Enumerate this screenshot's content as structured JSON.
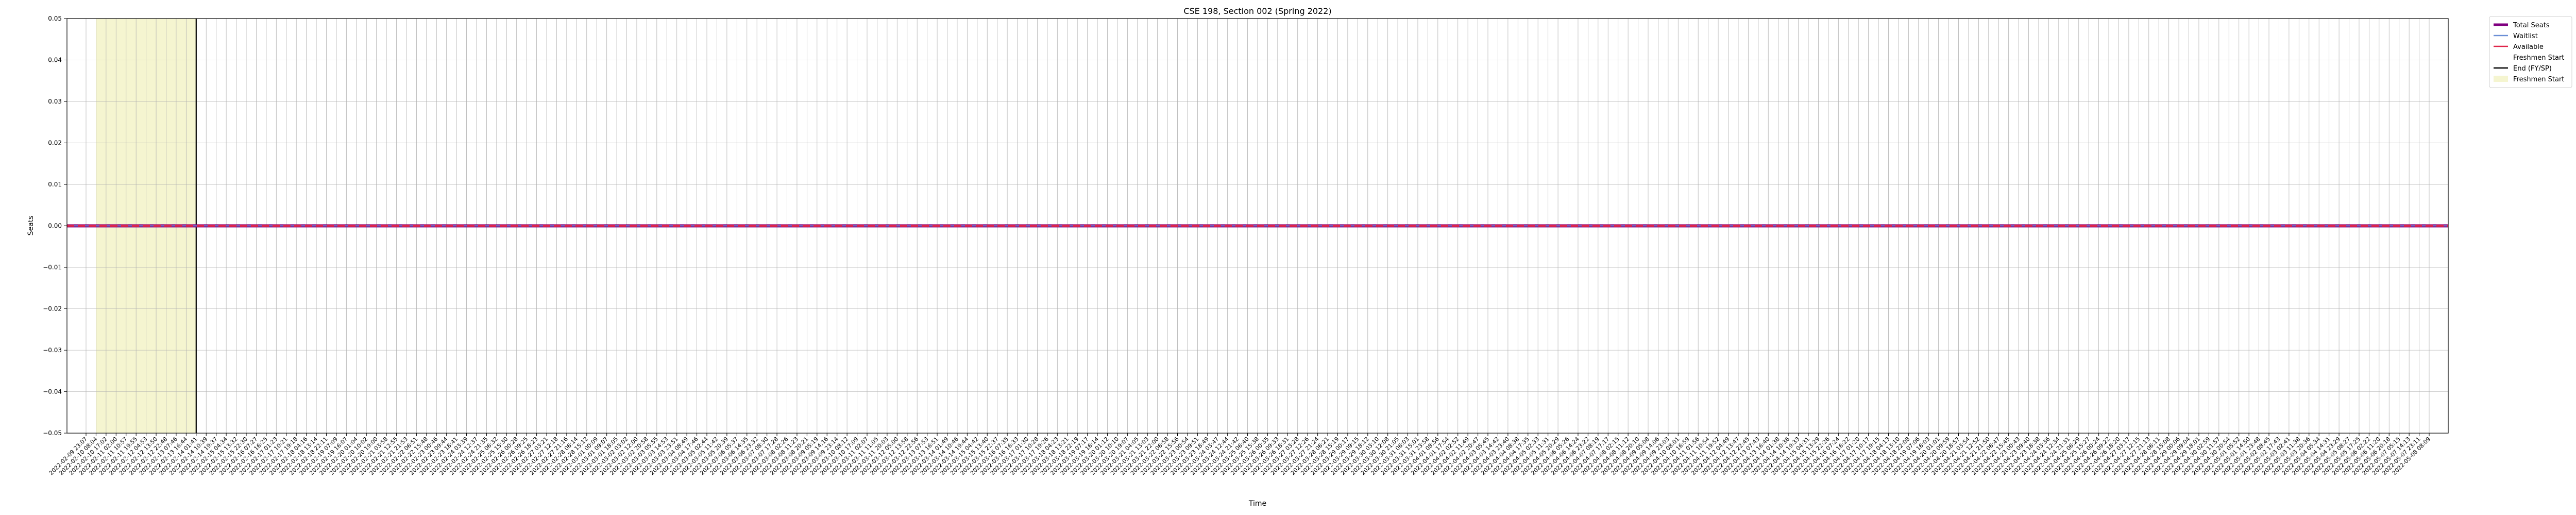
{
  "chart_data": {
    "type": "line",
    "title": "CSE 198, Section 002 (Spring 2022)",
    "xlabel": "Time",
    "ylabel": "Seats",
    "ylim": [
      -0.05,
      0.05
    ],
    "yticks": [
      "0.05",
      "0.04",
      "0.03",
      "0.02",
      "0.01",
      "0.00",
      "−0.01",
      "−0.02",
      "−0.03",
      "−0.04",
      "−0.05"
    ],
    "ytick_values": [
      0.05,
      0.04,
      0.03,
      0.02,
      0.01,
      0.0,
      -0.01,
      -0.02,
      -0.03,
      -0.04,
      -0.05
    ],
    "x_start": "2022-02-09 23:07",
    "x_end": "2022-05-08 08:09",
    "x_tick_count": 235,
    "grid": true,
    "legend_position": "outside-right-top",
    "freshmen_start_span_ticks": [
      1,
      11
    ],
    "end_fy_sp_tick": 11,
    "series": [
      {
        "name": "Total Seats",
        "color": "#800080",
        "style": "solid-thick",
        "values_constant": 0
      },
      {
        "name": "Waitlist",
        "color": "#6b8fd6",
        "style": "solid",
        "values_constant": 0
      },
      {
        "name": "Available",
        "color": "#e0264a",
        "style": "dashed",
        "values_constant": 0
      }
    ],
    "legend": [
      {
        "label": "Total Seats",
        "kind": "line",
        "color": "#800080"
      },
      {
        "label": "Waitlist",
        "kind": "line",
        "color": "#6b8fd6"
      },
      {
        "label": "Available",
        "kind": "line",
        "color": "#e0264a"
      },
      {
        "label": "Freshmen Start",
        "kind": "line",
        "color": "#ffffff"
      },
      {
        "label": "End (FY/SP)",
        "kind": "line",
        "color": "#000000"
      },
      {
        "label": "Freshmen Start",
        "kind": "patch",
        "color": "#f5f5d0"
      }
    ]
  }
}
